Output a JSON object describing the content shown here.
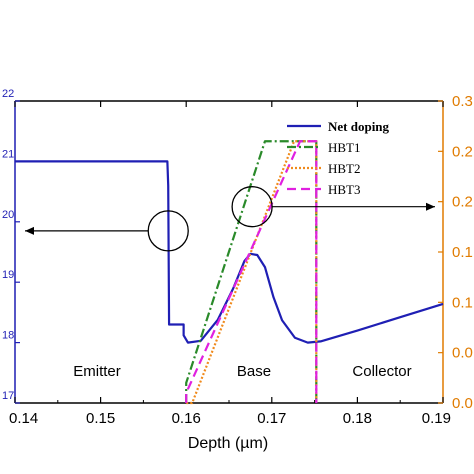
{
  "chart_data": {
    "type": "line",
    "xlabel": "Depth (µm)",
    "x_ticks": [
      "0.14",
      "0.15",
      "0.16",
      "0.17",
      "0.18",
      "0.19"
    ],
    "xlim": [
      0.14,
      0.19
    ],
    "left_axis": {
      "scale": "log",
      "tick_labels": [
        "22",
        "21",
        "20",
        "19",
        "18",
        "17"
      ],
      "tick_values": [
        22,
        21,
        20,
        19,
        18,
        17
      ],
      "range": [
        17,
        22
      ],
      "color": "#1f1fb4"
    },
    "right_axis": {
      "tick_labels": [
        "0.3",
        "0.2",
        "0.2",
        "0.1",
        "0.1",
        "0.0",
        "0.0"
      ],
      "range": [
        0,
        0.3
      ],
      "color": "#e07b00"
    },
    "regions": [
      "Emitter",
      "Base",
      "Collector"
    ],
    "series": [
      {
        "name": "Net doping",
        "axis": "left",
        "color": "#1f1fb4",
        "style": "solid",
        "points": [
          [
            0.14,
            21.0
          ],
          [
            0.1578,
            21.0
          ],
          [
            0.1579,
            20.6
          ],
          [
            0.158,
            18.3
          ],
          [
            0.1597,
            18.3
          ],
          [
            0.1597,
            18.12
          ],
          [
            0.1602,
            18.0
          ],
          [
            0.1617,
            18.03
          ],
          [
            0.1637,
            18.38
          ],
          [
            0.1655,
            18.9
          ],
          [
            0.1668,
            19.35
          ],
          [
            0.1675,
            19.47
          ],
          [
            0.1683,
            19.45
          ],
          [
            0.1692,
            19.25
          ],
          [
            0.1702,
            18.75
          ],
          [
            0.1712,
            18.37
          ],
          [
            0.1727,
            18.08
          ],
          [
            0.1742,
            18.0
          ],
          [
            0.1757,
            18.02
          ],
          [
            0.18,
            18.2
          ],
          [
            0.185,
            18.42
          ],
          [
            0.19,
            18.64
          ]
        ]
      },
      {
        "name": "HBT1",
        "axis": "right",
        "color": "#2a8a2a",
        "style": "dashdot",
        "points": [
          [
            0.16,
            0.0
          ],
          [
            0.16,
            0.02
          ],
          [
            0.1692,
            0.26
          ],
          [
            0.1743,
            0.26
          ],
          [
            0.1752,
            0.26
          ],
          [
            0.1752,
            0.0
          ]
        ]
      },
      {
        "name": "HBT2",
        "axis": "right",
        "color": "#f08a1c",
        "style": "dotted",
        "points": [
          [
            0.16,
            0.0
          ],
          [
            0.1607,
            0.0
          ],
          [
            0.1726,
            0.26
          ],
          [
            0.1743,
            0.26
          ],
          [
            0.1752,
            0.26
          ],
          [
            0.1752,
            0.0
          ]
        ]
      },
      {
        "name": "HBT3",
        "axis": "right",
        "color": "#e020e0",
        "style": "dashed",
        "points": [
          [
            0.16,
            0.0
          ],
          [
            0.16,
            0.01
          ],
          [
            0.1733,
            0.26
          ],
          [
            0.1743,
            0.26
          ],
          [
            0.1752,
            0.26
          ],
          [
            0.1752,
            0.0
          ]
        ]
      }
    ],
    "legend_position": "top-right",
    "annotations": [
      {
        "marker": "ellipse",
        "center_x": 0.1579,
        "center_y_left": 19.85,
        "arrow": "left",
        "arrow_target_x": 0.14,
        "arrow_axis": "left"
      },
      {
        "marker": "ellipse",
        "center_x": 0.1677,
        "center_y_left": 20.25,
        "arrow": "right",
        "arrow_target_x": 0.19,
        "arrow_axis": "right"
      }
    ]
  }
}
